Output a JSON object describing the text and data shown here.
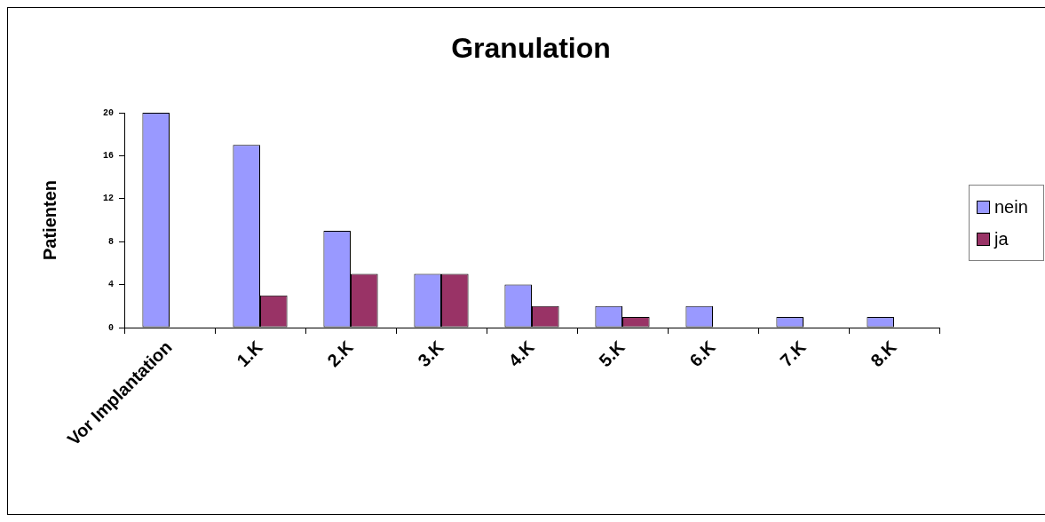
{
  "chart_data": {
    "type": "bar",
    "title": "Granulation",
    "ylabel": "Patienten",
    "categories": [
      "Vor Implantation",
      "1.K",
      "2.K",
      "3.K",
      "4.K",
      "5.K",
      "6.K",
      "7.K",
      "8.K"
    ],
    "series": [
      {
        "name": "nein",
        "color": "#9999ff",
        "values": [
          20,
          17,
          9,
          5,
          4,
          2,
          2,
          1,
          1
        ]
      },
      {
        "name": "ja",
        "color": "#993366",
        "values": [
          null,
          3,
          5,
          5,
          2,
          1,
          null,
          null,
          null
        ]
      }
    ],
    "ylim": [
      0,
      20
    ],
    "yticks": [
      0,
      4,
      8,
      12,
      16,
      20
    ],
    "legend": "right"
  }
}
